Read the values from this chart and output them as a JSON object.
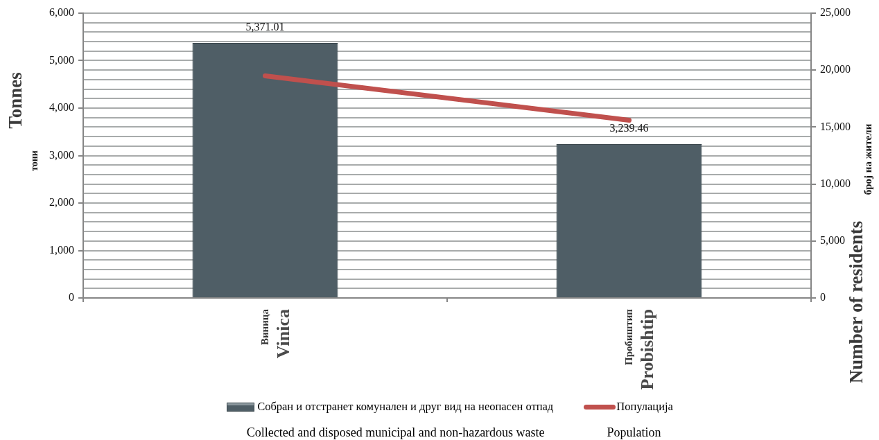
{
  "chart_data": {
    "type": "bar",
    "ylabel": "Tonnes\nтони",
    "y2label": "Number of residents\nброј на жители",
    "categories": [
      "Виница\nVinica",
      "Пробиштип\nProbishtip"
    ],
    "series": [
      {
        "name": "Собран и отстранет комунален и друг вид на неопасен отпад\nCollected and disposed municipal and non-hazardous waste",
        "color": "#4f5e66",
        "values": [
          5371.01,
          3239.46
        ],
        "value_labels": [
          "5,371.01",
          "3,239.46"
        ]
      },
      {
        "name": "Популација\nPopulation",
        "type": "line",
        "axis": "y2",
        "color": "#c0504d",
        "values": [
          19500,
          15600
        ]
      }
    ],
    "ylim": [
      0,
      6000
    ],
    "yticks": [
      0,
      {
        "value": 200,
        "label": null
      },
      {
        "value": 400,
        "label": null
      },
      {
        "value": 600,
        "label": null
      },
      {
        "value": 800,
        "label": null
      },
      {
        "value": 1000,
        "label": "1,000"
      },
      {
        "value": 1200,
        "label": null
      },
      {
        "value": 1400,
        "label": null
      },
      {
        "value": 1600,
        "label": null
      },
      {
        "value": 1800,
        "label": null
      },
      {
        "value": 2000,
        "label": "2,000"
      },
      {
        "value": 2200,
        "label": null
      },
      {
        "value": 2400,
        "label": null
      },
      {
        "value": 2600,
        "label": null
      },
      {
        "value": 2800,
        "label": null
      },
      {
        "value": 3000,
        "label": "3,000"
      },
      {
        "value": 3200,
        "label": null
      },
      {
        "value": 3400,
        "label": null
      },
      {
        "value": 3600,
        "label": null
      },
      {
        "value": 3800,
        "label": null
      },
      {
        "value": 4000,
        "label": "4,000"
      },
      {
        "value": 4200,
        "label": null
      },
      {
        "value": 4400,
        "label": null
      },
      {
        "value": 4600,
        "label": null
      },
      {
        "value": 4800,
        "label": null
      },
      {
        "value": 5000,
        "label": "5,000"
      },
      {
        "value": 5200,
        "label": null
      },
      {
        "value": 5400,
        "label": null
      },
      {
        "value": 5600,
        "label": null
      },
      {
        "value": 5800,
        "label": null
      },
      {
        "value": 6000,
        "label": "6,000"
      }
    ],
    "y2lim": [
      0,
      25000
    ],
    "y2ticks": [
      0,
      {
        "value": 5000,
        "label": "5,000"
      },
      {
        "value": 10000,
        "label": "10,000"
      },
      {
        "value": 15000,
        "label": "15,000"
      },
      {
        "value": 20000,
        "label": "20,000"
      },
      {
        "value": 25000,
        "label": "25,000"
      }
    ],
    "grid": "y",
    "legend": "bottom",
    "marker": "none",
    "line_style": "solid"
  }
}
